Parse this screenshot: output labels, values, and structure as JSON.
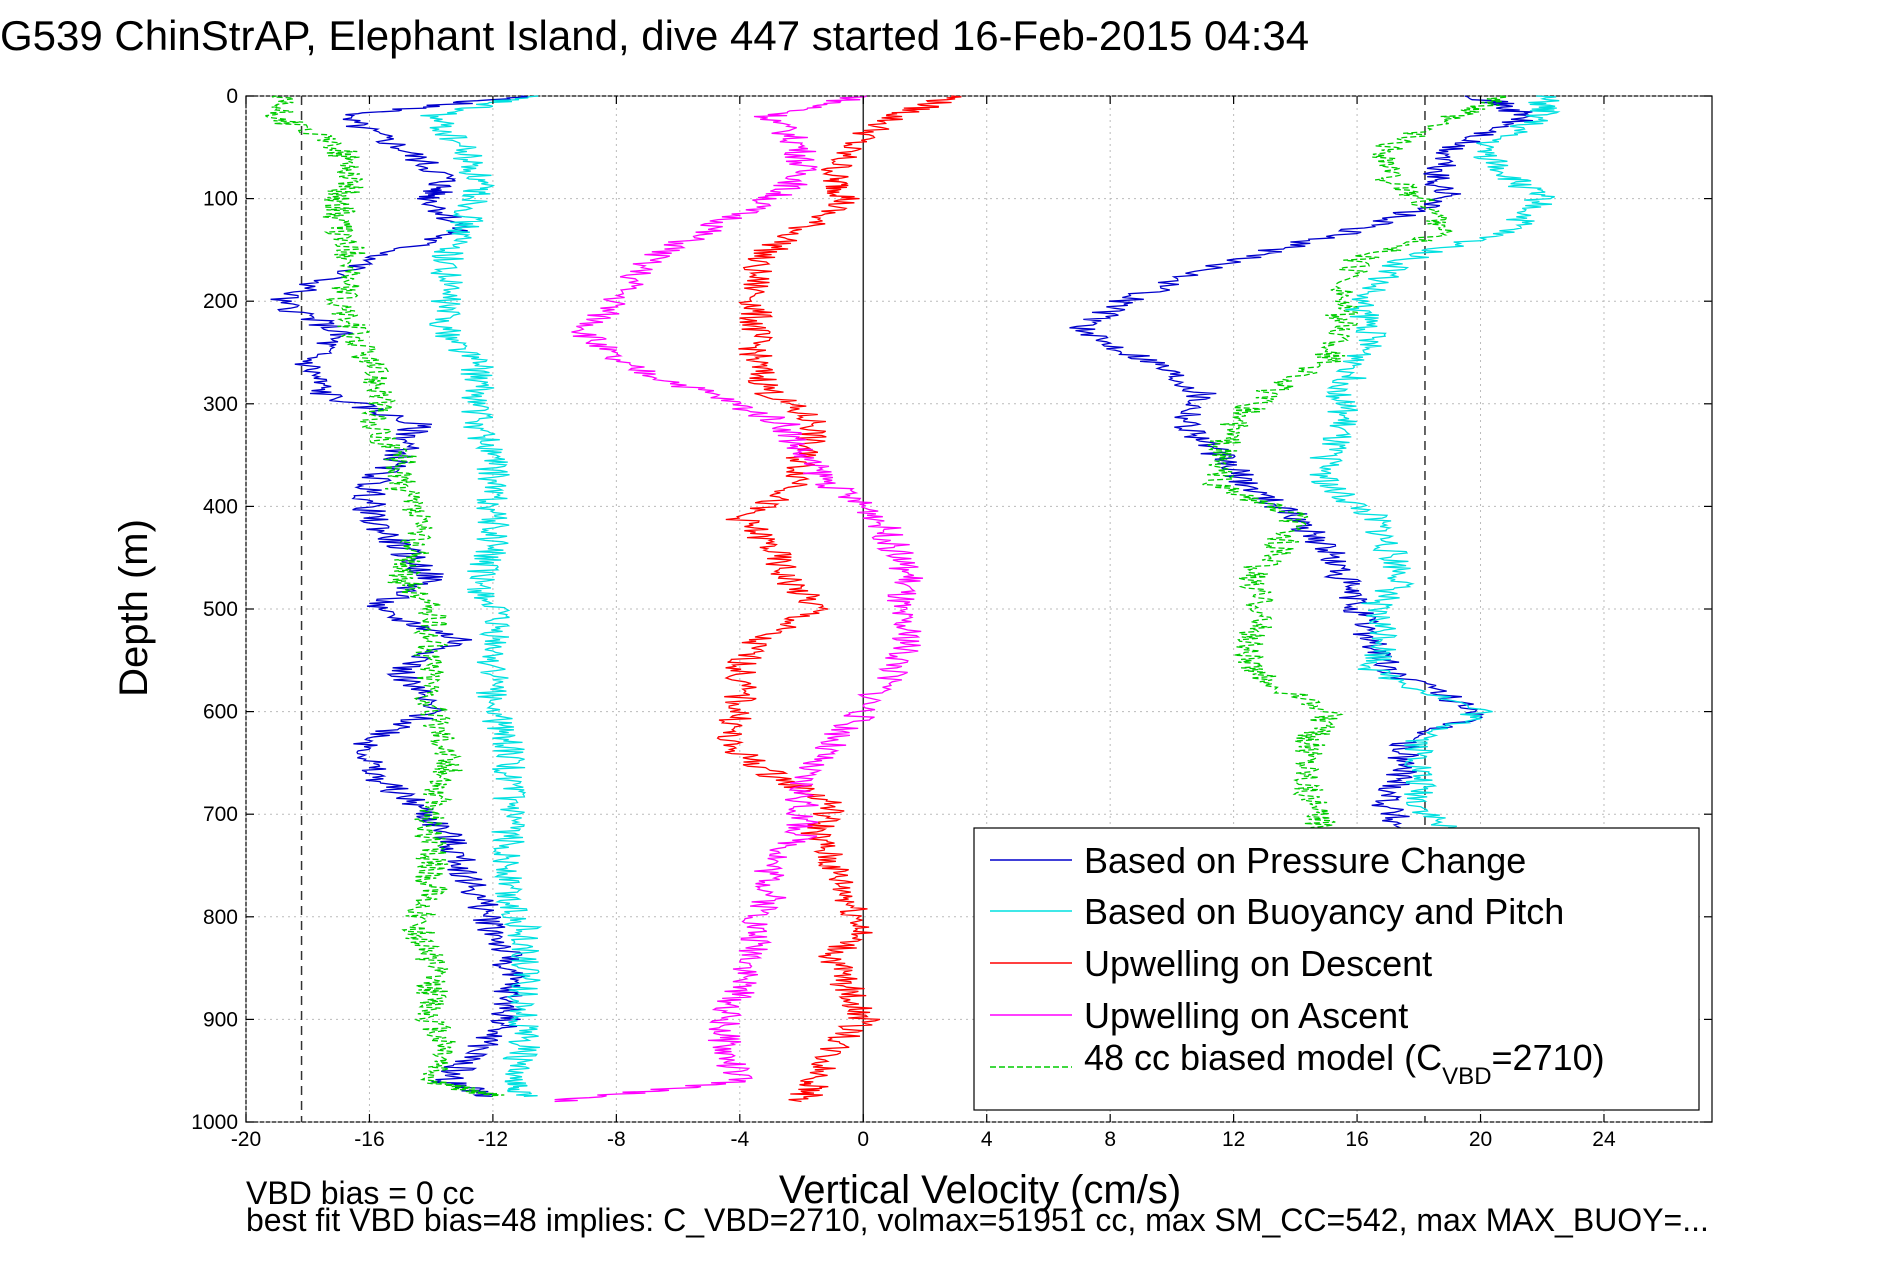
{
  "chart_data": {
    "type": "line",
    "title": "G539 ChinStrAP, Elephant Island, dive 447 started 16-Feb-2015 04:34",
    "xlabel": "Vertical Velocity (cm/s)",
    "ylabel": "Depth (m)",
    "xlim": [
      -20,
      27.5
    ],
    "ylim": [
      1000,
      0
    ],
    "y_inverted": true,
    "grid": true,
    "x_ticks": [
      "-20",
      "-16",
      "-12",
      "-8",
      "-4",
      "0",
      "4",
      "8",
      "12",
      "16",
      "20",
      "24"
    ],
    "y_ticks": [
      "0",
      "100",
      "200",
      "300",
      "400",
      "500",
      "600",
      "700",
      "800",
      "900",
      "1000"
    ],
    "reference_lines": {
      "dashed_vertical_x": [
        -18.2,
        18.2
      ],
      "solid_vertical_x": [
        0
      ]
    },
    "legend_position": "bottom-right",
    "legend": {
      "main_entries": [
        "Based on Pressure Change",
        "Based on Buoyancy and Pitch",
        "Upwelling on Descent",
        "Upwelling on Ascent"
      ],
      "model_prefix": "48 cc biased model (C",
      "model_sub": "VBD",
      "model_suffix": "=2710)"
    },
    "series": [
      {
        "name": "Based on Pressure Change",
        "color": "#0000cc",
        "depth": [
          0,
          20,
          50,
          80,
          100,
          130,
          160,
          200,
          230,
          260,
          290,
          320,
          350,
          380,
          410,
          440,
          470,
          500,
          530,
          560,
          600,
          630,
          660,
          690,
          720,
          750,
          780,
          810,
          840,
          870,
          900,
          930,
          960,
          975
        ],
        "descent_x": [
          -11,
          -17,
          -15,
          -13.5,
          -14,
          -13,
          -16,
          -19,
          -17,
          -18,
          -17.5,
          -14.5,
          -15,
          -16,
          -16,
          -15,
          -14,
          -16,
          -13,
          -15,
          -14,
          -16,
          -16,
          -14.5,
          -13.5,
          -13,
          -12.5,
          -12,
          -11.5,
          -11.5,
          -11.5,
          -12.5,
          -13.5,
          -12
        ],
        "ascent_x": [
          20,
          21.5,
          19,
          18.5,
          19,
          16,
          12,
          8.5,
          7,
          9.5,
          11,
          10.5,
          11.5,
          12.5,
          14,
          15,
          15.5,
          16,
          16.5,
          17,
          20,
          17.5,
          17.5,
          17,
          17.5
        ]
      },
      {
        "name": "Based on Buoyancy and Pitch",
        "color": "#00e0e0",
        "depth": [
          0,
          20,
          50,
          80,
          100,
          130,
          160,
          200,
          230,
          260,
          290,
          320,
          350,
          380,
          410,
          440,
          470,
          500,
          530,
          560,
          600,
          630,
          660,
          690,
          720,
          750,
          780,
          810,
          840,
          870,
          900,
          930,
          960,
          975
        ],
        "descent_x": [
          -11,
          -14,
          -13,
          -12.5,
          -12.5,
          -13,
          -13.5,
          -13.5,
          -13.5,
          -12.5,
          -12.5,
          -12.5,
          -12,
          -12,
          -12,
          -12,
          -12.5,
          -12,
          -12,
          -12,
          -12,
          -11.5,
          -11.5,
          -11.5,
          -11.5,
          -11.5,
          -11.5,
          -11,
          -11,
          -11,
          -11,
          -11,
          -11.5,
          -11
        ],
        "ascent_x": [
          22,
          22,
          20,
          21,
          22,
          21,
          17.5,
          16,
          16.5,
          16,
          15.5,
          15.5,
          15,
          15,
          16.5,
          17,
          17.5,
          16.5,
          17,
          16.5,
          20,
          18,
          18,
          18,
          19
        ]
      },
      {
        "name": "Upwelling on Descent",
        "color": "#ff0000",
        "depth": [
          0,
          20,
          50,
          80,
          100,
          130,
          160,
          200,
          230,
          260,
          290,
          320,
          350,
          380,
          410,
          440,
          470,
          500,
          530,
          560,
          600,
          630,
          660,
          690,
          720,
          750,
          780,
          810,
          840,
          870,
          900,
          930,
          960,
          980
        ],
        "x": [
          3,
          1,
          -0.5,
          -1,
          -0.5,
          -2,
          -3.5,
          -3.5,
          -3.5,
          -3.5,
          -3,
          -1.5,
          -2,
          -2,
          -4,
          -3,
          -2.5,
          -1.5,
          -3.5,
          -4,
          -4,
          -4.5,
          -3,
          -1,
          -1.5,
          -1,
          -0.5,
          0,
          -1,
          -0.5,
          0,
          -1,
          -1.5,
          -2
        ]
      },
      {
        "name": "Upwelling on Ascent",
        "color": "#ff00ff",
        "depth": [
          0,
          20,
          50,
          80,
          100,
          130,
          160,
          200,
          230,
          260,
          290,
          320,
          350,
          380,
          410,
          440,
          470,
          500,
          530,
          560,
          600,
          630,
          660,
          690,
          720,
          750,
          780,
          810,
          840,
          870,
          900,
          930,
          960,
          980
        ],
        "x": [
          0,
          -3,
          -2,
          -2,
          -3,
          -5,
          -7,
          -8,
          -9,
          -8,
          -5,
          -2.5,
          -2,
          -1,
          0.5,
          1,
          1.5,
          1,
          1.5,
          1,
          0,
          -1,
          -2,
          -2,
          -2,
          -3,
          -3,
          -3.5,
          -3.5,
          -4,
          -4.5,
          -4.5,
          -4,
          -10
        ]
      },
      {
        "name": "48 cc biased model (CVBD=2710)",
        "color": "#00cc00",
        "dashed": true,
        "depth": [
          0,
          20,
          50,
          80,
          100,
          130,
          160,
          200,
          230,
          260,
          290,
          320,
          350,
          380,
          410,
          440,
          470,
          500,
          530,
          560,
          600,
          630,
          660,
          690,
          720,
          750,
          780,
          810,
          840,
          870,
          900,
          930,
          960,
          975
        ],
        "descent_x": [
          -19,
          -19,
          -17,
          -16.5,
          -17,
          -17,
          -16.5,
          -17,
          -16.5,
          -16,
          -15.5,
          -16,
          -15,
          -15,
          -14.5,
          -14.5,
          -15,
          -14,
          -14,
          -14,
          -14,
          -13.5,
          -13.5,
          -14,
          -14,
          -14,
          -14,
          -14.5,
          -14,
          -14,
          -14,
          -13.5,
          -14,
          -12
        ],
        "ascent_x": [
          21,
          19,
          17,
          17,
          18,
          19,
          16,
          15.5,
          15.5,
          15,
          13,
          12,
          11.5,
          11.5,
          14,
          13.5,
          12.5,
          13,
          12.5,
          12.5,
          15,
          14.5,
          14.5,
          14.5,
          15
        ]
      }
    ]
  },
  "annotations": {
    "vbd_bias": "VBD bias = 0 cc",
    "best_fit": "best fit VBD bias=48 implies: C_VBD=2710, volmax=51951 cc, max SM_CC=542, max MAX_BUOY=..."
  }
}
